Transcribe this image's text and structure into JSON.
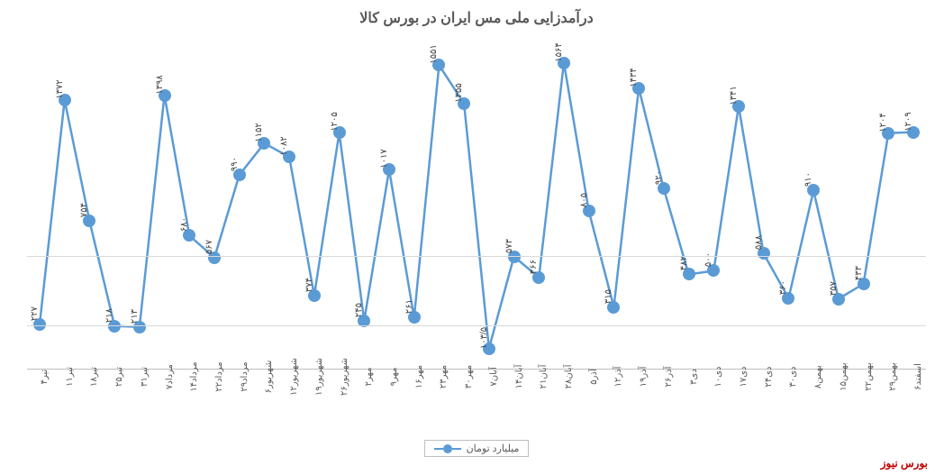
{
  "chart": {
    "type": "line",
    "title": "درآمدزایی ملی مس ایران در بورس کالا",
    "title_fontsize": 16,
    "series_name": "میلیارد تومان",
    "series_color": "#5b9bd5",
    "line_width": 2.5,
    "marker_size": 14,
    "background_color": "#ffffff",
    "grid_color": "#d9d9d9",
    "text_color": "#595959",
    "ylim": [
      0,
      1700
    ],
    "categories": [
      "۴تیر",
      "۱۱تیر",
      "۱۸تیر",
      "۲۵تیر",
      "۳۱تیر",
      "۷مرداد",
      "۱۴مرداد",
      "۲۲مرداد",
      "۲۹مرداد",
      "۶شهریور",
      "۱۲شهریور",
      "۱۹شهریور",
      "۲۶شهریور",
      "۲مهر",
      "۹مهر",
      "۱۶مهر",
      "۲۳مهر",
      "۳۰مهر",
      "۷آبان",
      "۱۴آبان",
      "۲۱آبان",
      "۲۸آبان",
      "۵آذر",
      "۱۲آذر",
      "۱۹آذر",
      "۲۶آذر",
      "۳دی",
      "۱۰دی",
      "۱۷دی",
      "۲۴دی",
      "۳۰دی",
      "۸بهمن",
      "۱۵بهمن",
      "۲۲بهمن",
      "۲۹بهمن",
      "۶اسفند"
    ],
    "values": [
      227,
      1372,
      754,
      218,
      213,
      1398,
      680,
      567,
      990,
      1152,
      1082,
      374,
      1205,
      245,
      1017,
      261,
      1551,
      1355,
      103.5,
      573,
      466,
      1564,
      805,
      315,
      1434,
      920,
      482,
      500,
      1341,
      588,
      360,
      910,
      357,
      433,
      1204,
      1209
    ],
    "labels": [
      "۲۲۷",
      "۱۳۷۲",
      "۷۵۴",
      "۲۱۸",
      "۲۱۳",
      "۱۳۹۸",
      "۶۸۰",
      "۵۶۷",
      "۹۹۰",
      "۱۱۵۲",
      "۱۰۸۲",
      "۳۷۴",
      "۱۲۰۵",
      "۲۴۵",
      "۱۰۱۷",
      "۲۶۱",
      "۱۵۵۱",
      "۱۳۵۵",
      "۱۰۳/۵",
      "۵۷۳",
      "۴۶۶",
      "۱۵۶۴",
      "۸۰۵",
      "۳۱۵",
      "۱۴۳۴",
      "۹۲۰",
      "۴۸۲",
      "۵۰۰",
      "۱۳۴۱",
      "۵۸۸",
      "۳۶۰",
      "۹۱۰",
      "۳۵۷",
      "۴۳۳",
      "۱۲۰۴",
      "۱۲۰۹"
    ],
    "source_label": "بورس نیوز",
    "source_color": "#c00000"
  }
}
